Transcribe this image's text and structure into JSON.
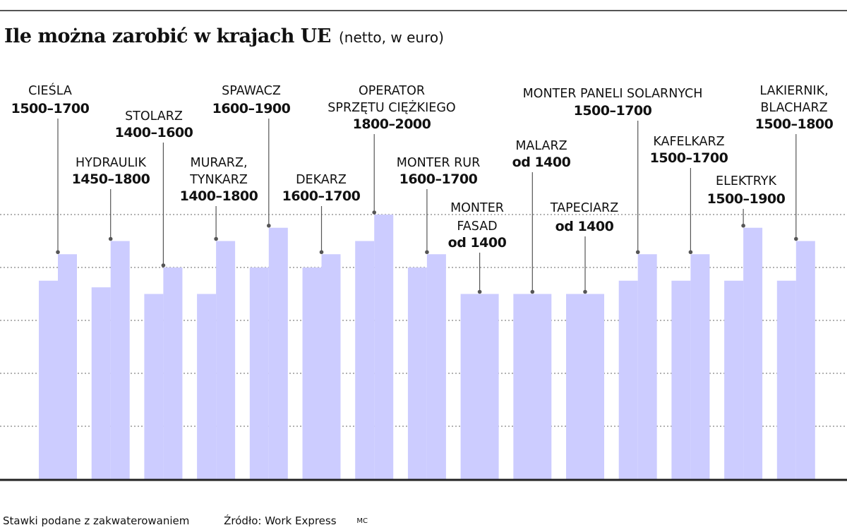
{
  "title": "Ile  można zarobić w krajach UE",
  "subtitle": "(netto, w euro)",
  "footer": {
    "note": "Stawki podane z zakwaterowaniem",
    "source": "Źródło: Work Express",
    "credit": "MC"
  },
  "colors": {
    "bar": "#ccccff",
    "text": "#111111",
    "gridline": "#666666"
  },
  "chart_data": {
    "type": "bar",
    "title": "Ile  można zarobić w krajach UE",
    "subtitle": "(netto, w euro)",
    "xlabel": "",
    "ylabel": "",
    "ylim": [
      0,
      2000
    ],
    "grid": true,
    "categories": [
      {
        "name": [
          "CIEŚLA"
        ],
        "value_label": "1500–1700",
        "min": 1500,
        "max": 1700
      },
      {
        "name": [
          "HYDRAULIK"
        ],
        "value_label": "1450–1800",
        "min": 1450,
        "max": 1800
      },
      {
        "name": [
          "STOLARZ"
        ],
        "value_label": "1400–1600",
        "min": 1400,
        "max": 1600
      },
      {
        "name": [
          "MURARZ,",
          "TYNKARZ"
        ],
        "value_label": "1400–1800",
        "min": 1400,
        "max": 1800
      },
      {
        "name": [
          "SPAWACZ"
        ],
        "value_label": "1600–1900",
        "min": 1600,
        "max": 1900
      },
      {
        "name": [
          "DEKARZ"
        ],
        "value_label": "1600–1700",
        "min": 1600,
        "max": 1700
      },
      {
        "name": [
          "OPERATOR",
          "SPRZĘTU CIĘŻKIEGO"
        ],
        "value_label": "1800–2000",
        "min": 1800,
        "max": 2000
      },
      {
        "name": [
          "MONTER RUR"
        ],
        "value_label": "1600–1700",
        "min": 1600,
        "max": 1700
      },
      {
        "name": [
          "MONTER",
          "FASAD"
        ],
        "value_label": "od 1400",
        "min": 1400,
        "max": 1400
      },
      {
        "name": [
          "MALARZ"
        ],
        "value_label": "od 1400",
        "min": 1400,
        "max": 1400
      },
      {
        "name": [
          "TAPECIARZ"
        ],
        "value_label": "od 1400",
        "min": 1400,
        "max": 1400
      },
      {
        "name": [
          "MONTER PANELI SOLARNYCH"
        ],
        "value_label": "1500–1700",
        "min": 1500,
        "max": 1700
      },
      {
        "name": [
          "KAFELKARZ"
        ],
        "value_label": "1500–1700",
        "min": 1500,
        "max": 1700
      },
      {
        "name": [
          "ELEKTRYK"
        ],
        "value_label": "1500–1900",
        "min": 1500,
        "max": 1900
      },
      {
        "name": [
          "LAKIERNIK,",
          "BLACHARZ"
        ],
        "value_label": "1500–1800",
        "min": 1500,
        "max": 1800
      }
    ]
  }
}
